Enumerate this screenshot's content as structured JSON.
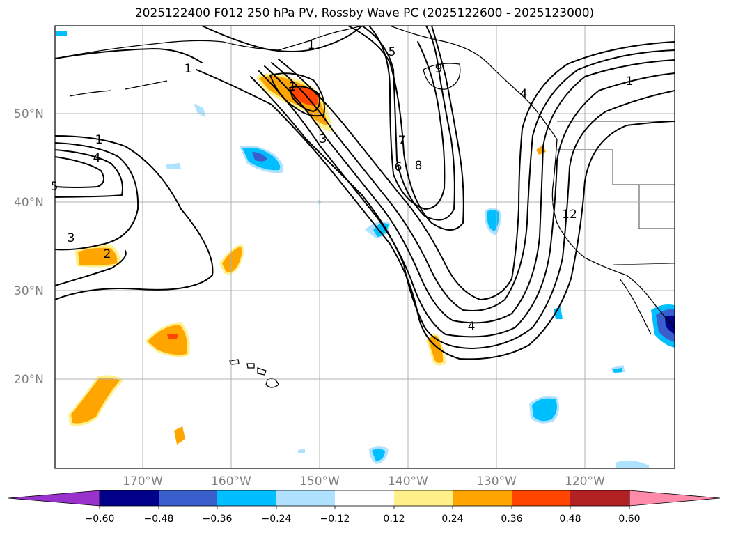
{
  "title": "2025122400 F012 250 hPa PV, Rossby Wave PC (2025122600 - 2025123000)",
  "lat_labels": [
    "50°N",
    "40°N",
    "30°N",
    "20°N"
  ],
  "lon_labels": [
    "170°W",
    "160°W",
    "150°W",
    "140°W",
    "130°W",
    "120°W"
  ],
  "colorbar": {
    "tick_labels": [
      "−0.60",
      "−0.48",
      "−0.36",
      "−0.24",
      "−0.12",
      "0.12",
      "0.24",
      "0.36",
      "0.48",
      "0.60"
    ],
    "colors": [
      "#9932cc",
      "#00008b",
      "#3a5fcd",
      "#00bfff",
      "#b0e2ff",
      "#ffffff",
      "#fff08a",
      "#ffa500",
      "#ff4500",
      "#b22222",
      "#ff8aaa"
    ],
    "extend": "both"
  },
  "contour_labels": [
    "1",
    "1",
    "1",
    "1",
    "1",
    "3",
    "3",
    "4",
    "4",
    "5",
    "5",
    "6",
    "7",
    "8",
    "9",
    "2",
    "12",
    "4"
  ],
  "map": {
    "projection": "lat-lon",
    "lat_range": [
      10,
      60
    ],
    "lon_range": [
      -180,
      -110
    ],
    "contour_variable": "250 hPa PV"
  }
}
